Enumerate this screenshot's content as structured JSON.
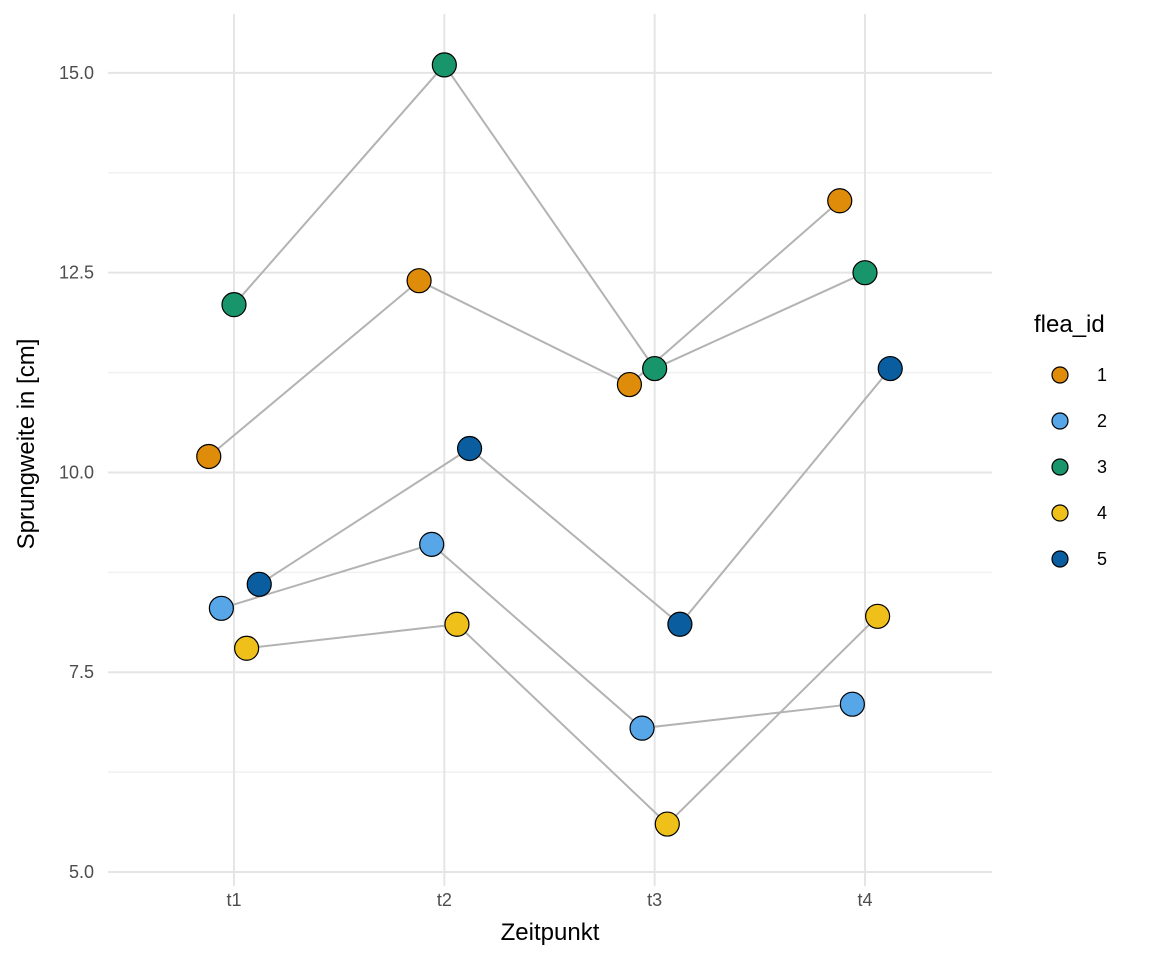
{
  "chart_data": {
    "type": "scatter",
    "title": "",
    "xlabel": "Zeitpunkt",
    "ylabel": "Sprungweite in [cm]",
    "categories": [
      "t1",
      "t2",
      "t3",
      "t4"
    ],
    "ylim": [
      4.85,
      15.95
    ],
    "yticks": [
      5.0,
      7.5,
      10.0,
      12.5,
      15.0
    ],
    "ytick_labels": [
      "5.0",
      "7.5",
      "10.0",
      "12.5",
      "15.0"
    ],
    "grid": true,
    "legend": {
      "title": "flea_id",
      "position": "right"
    },
    "jitter": [
      -0.12,
      -0.06,
      0.0,
      0.06,
      0.12
    ],
    "series": [
      {
        "name": "1",
        "color": "#E08C0B",
        "values": [
          10.2,
          12.4,
          11.1,
          13.4
        ]
      },
      {
        "name": "2",
        "color": "#56A6E8",
        "values": [
          8.3,
          9.1,
          6.8,
          7.1
        ]
      },
      {
        "name": "3",
        "color": "#18956B",
        "values": [
          12.1,
          15.1,
          11.3,
          12.5
        ]
      },
      {
        "name": "4",
        "color": "#F0C01A",
        "values": [
          7.8,
          8.1,
          5.6,
          8.2
        ]
      },
      {
        "name": "5",
        "color": "#0A5EA0",
        "values": [
          8.6,
          10.3,
          8.1,
          11.3
        ]
      }
    ]
  }
}
